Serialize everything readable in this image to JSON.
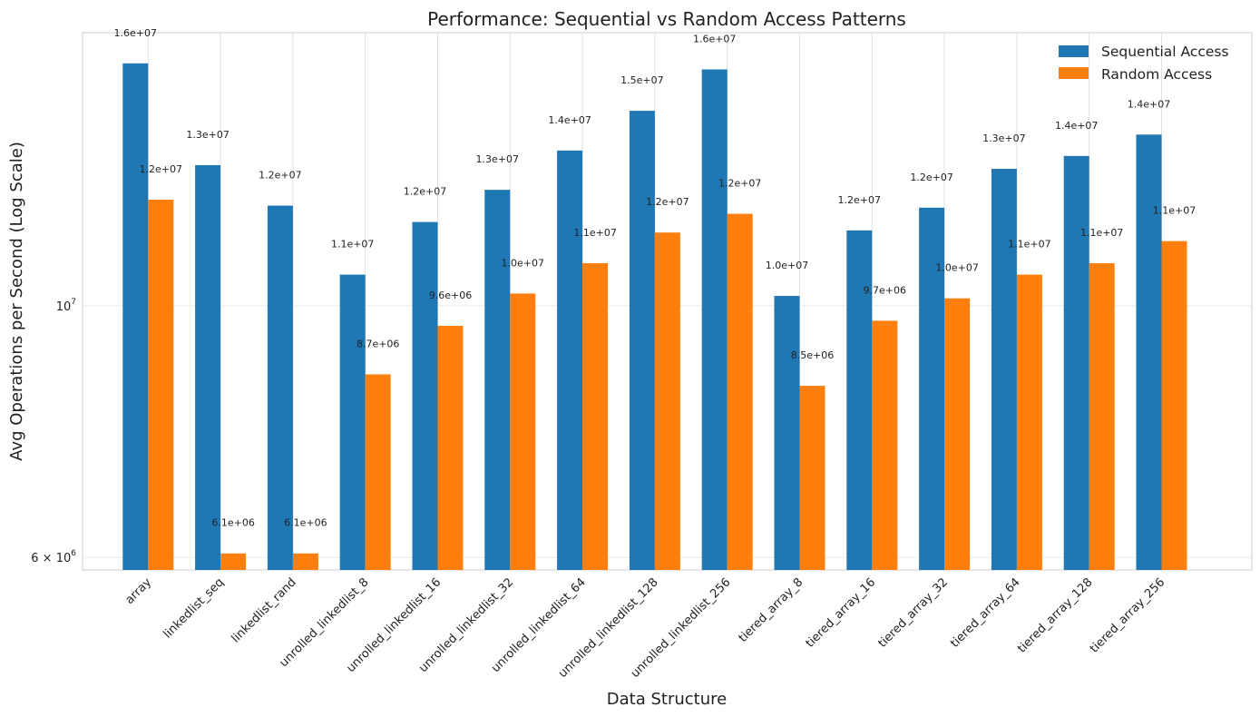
{
  "chart_data": {
    "type": "bar",
    "title": "Performance: Sequential vs Random Access Patterns",
    "xlabel": "Data Structure",
    "ylabel": "Avg Operations per Second (Log Scale)",
    "yscale": "log",
    "ylim": [
      5850000,
      17400000
    ],
    "y_ticks": [
      {
        "value": 6000000,
        "base": "6 × 10",
        "exp": "6"
      },
      {
        "value": 10000000,
        "base": "10",
        "exp": "7"
      }
    ],
    "grid": true,
    "legend_position": "top-right",
    "categories": [
      "array",
      "linkedlist_seq",
      "linkedlist_rand",
      "unrolled_linkedlist_8",
      "unrolled_linkedlist_16",
      "unrolled_linkedlist_32",
      "unrolled_linkedlist_64",
      "unrolled_linkedlist_128",
      "unrolled_linkedlist_256",
      "tiered_array_8",
      "tiered_array_16",
      "tiered_array_32",
      "tiered_array_64",
      "tiered_array_128",
      "tiered_array_256"
    ],
    "series": [
      {
        "name": "Sequential Access",
        "color": "#1f77b4",
        "values": [
          16350000,
          13300000,
          12250000,
          10650000,
          11850000,
          12650000,
          13700000,
          14850000,
          16150000,
          10200000,
          11650000,
          12200000,
          13200000,
          13550000,
          14150000
        ],
        "labels": [
          "1.6e+07",
          "1.3e+07",
          "1.2e+07",
          "1.1e+07",
          "1.2e+07",
          "1.3e+07",
          "1.4e+07",
          "1.5e+07",
          "1.6e+07",
          "1.0e+07",
          "1.2e+07",
          "1.2e+07",
          "1.3e+07",
          "1.4e+07",
          "1.4e+07"
        ]
      },
      {
        "name": "Random Access",
        "color": "#ff7f0e",
        "values": [
          12400000,
          6050000,
          6050000,
          8700000,
          9600000,
          10250000,
          10900000,
          11600000,
          12050000,
          8500000,
          9700000,
          10150000,
          10650000,
          10900000,
          11400000
        ],
        "labels": [
          "1.2e+07",
          "6.1e+06",
          "6.1e+06",
          "8.7e+06",
          "9.6e+06",
          "1.0e+07",
          "1.1e+07",
          "1.2e+07",
          "1.2e+07",
          "8.5e+06",
          "9.7e+06",
          "1.0e+07",
          "1.1e+07",
          "1.1e+07",
          "1.1e+07"
        ]
      }
    ]
  }
}
